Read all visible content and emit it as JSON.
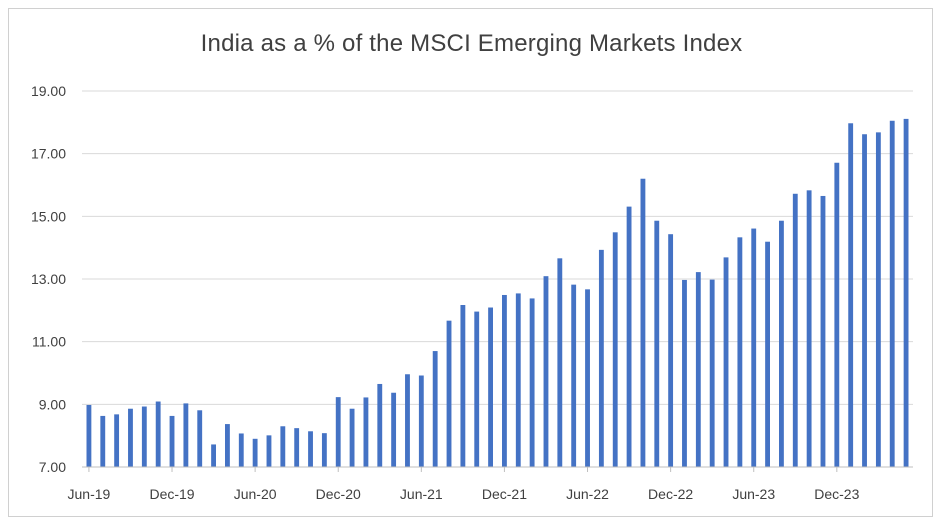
{
  "chart_data": {
    "type": "bar",
    "title": "India as a % of the MSCI Emerging Markets Index",
    "xlabel": "",
    "ylabel": "",
    "ylim": [
      7,
      19
    ],
    "yticks": [
      "7.00",
      "9.00",
      "11.00",
      "13.00",
      "15.00",
      "17.00",
      "19.00"
    ],
    "grid": true,
    "bar_color": "#4472C4",
    "x_tick_labels": [
      {
        "index": 0,
        "label": "Jun-19"
      },
      {
        "index": 6,
        "label": "Dec-19"
      },
      {
        "index": 12,
        "label": "Jun-20"
      },
      {
        "index": 18,
        "label": "Dec-20"
      },
      {
        "index": 24,
        "label": "Jun-21"
      },
      {
        "index": 30,
        "label": "Dec-21"
      },
      {
        "index": 36,
        "label": "Jun-22"
      },
      {
        "index": 42,
        "label": "Dec-22"
      },
      {
        "index": 48,
        "label": "Jun-23"
      },
      {
        "index": 54,
        "label": "Dec-23"
      }
    ],
    "categories": [
      "Jun-19",
      "Jul-19",
      "Aug-19",
      "Sep-19",
      "Oct-19",
      "Nov-19",
      "Dec-19",
      "Jan-20",
      "Feb-20",
      "Mar-20",
      "Apr-20",
      "May-20",
      "Jun-20",
      "Jul-20",
      "Aug-20",
      "Sep-20",
      "Oct-20",
      "Nov-20",
      "Dec-20",
      "Jan-21",
      "Feb-21",
      "Mar-21",
      "Apr-21",
      "May-21",
      "Jun-21",
      "Jul-21",
      "Aug-21",
      "Sep-21",
      "Oct-21",
      "Nov-21",
      "Dec-21",
      "Jan-22",
      "Feb-22",
      "Mar-22",
      "Apr-22",
      "May-22",
      "Jun-22",
      "Jul-22",
      "Aug-22",
      "Sep-22",
      "Oct-22",
      "Nov-22",
      "Dec-22",
      "Jan-23",
      "Feb-23",
      "Mar-23",
      "Apr-23",
      "May-23",
      "Jun-23",
      "Jul-23",
      "Aug-23",
      "Sep-23",
      "Oct-23",
      "Nov-23",
      "Dec-23",
      "Jan-24",
      "Feb-24",
      "Mar-24",
      "Apr-24",
      "May-24"
    ],
    "values": [
      8.98,
      8.63,
      8.68,
      8.86,
      8.93,
      9.09,
      8.63,
      9.03,
      8.81,
      7.72,
      8.37,
      8.07,
      7.9,
      8.01,
      8.3,
      8.24,
      8.14,
      8.08,
      9.23,
      8.86,
      9.22,
      9.65,
      9.37,
      9.96,
      9.92,
      10.7,
      11.67,
      12.17,
      11.96,
      12.09,
      12.49,
      12.54,
      12.38,
      13.09,
      13.66,
      12.82,
      12.67,
      13.93,
      14.49,
      15.31,
      16.2,
      14.86,
      14.43,
      12.97,
      13.22,
      12.98,
      13.69,
      14.33,
      14.61,
      14.19,
      14.86,
      15.72,
      15.83,
      15.65,
      16.71,
      17.97,
      17.62,
      17.68,
      18.05,
      18.11
    ]
  }
}
